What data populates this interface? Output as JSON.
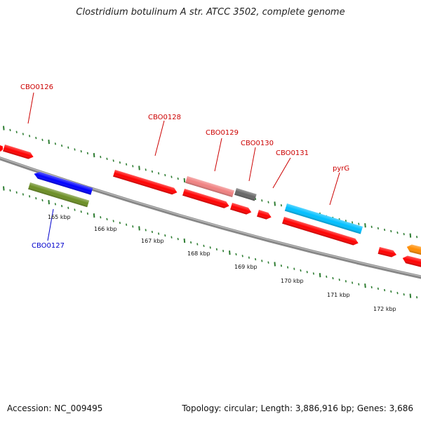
{
  "title": "Clostridium botulinum A str. ATCC 3502, complete genome",
  "footer": {
    "accession_label": "Accession:",
    "accession": "NC_009495",
    "topology_label": "Topology:",
    "topology": "circular",
    "length_label": "Length:",
    "length": "3,886,916 bp",
    "genes_label": "Genes:",
    "genes": "3,686"
  },
  "colors": {
    "backbone": "#888888",
    "gene_label_top": "#cc0000",
    "gene_label_bottom": "#0000cc",
    "tick": "#2e7d32"
  },
  "scale_labels": [
    "165 kbp",
    "166 kbp",
    "167 kbp",
    "168 kbp",
    "169 kbp",
    "170 kbp",
    "171 kbp",
    "172 kbp"
  ],
  "gene_labels": [
    "CBO0126",
    "CBO0127",
    "CBO0128",
    "CBO0129",
    "CBO0130",
    "CBO0131",
    "pyrG"
  ],
  "features": [
    {
      "name": "feature-red-edge-left",
      "color": "#ff0000"
    },
    {
      "name": "feature-red-cbo0126",
      "color": "#ff0000"
    },
    {
      "name": "feature-blue-cbo0127",
      "color": "#0000ff"
    },
    {
      "name": "feature-olive-cbo0127",
      "color": "#6b8e23"
    },
    {
      "name": "feature-red-cbo0128",
      "color": "#ff0000"
    },
    {
      "name": "feature-pink-cbo0129",
      "color": "#f08080"
    },
    {
      "name": "feature-red-cbo0129",
      "color": "#ff0000"
    },
    {
      "name": "feature-gray-cbo0130",
      "color": "#666666"
    },
    {
      "name": "feature-red-cbo0130",
      "color": "#ff0000"
    },
    {
      "name": "feature-red-cbo0131",
      "color": "#ff0000"
    },
    {
      "name": "feature-cyan-pyrg",
      "color": "#00bfff"
    },
    {
      "name": "feature-red-pyrg",
      "color": "#ff0000"
    },
    {
      "name": "feature-red-small-right",
      "color": "#ff0000"
    },
    {
      "name": "feature-orange-right",
      "color": "#ff8c00"
    },
    {
      "name": "feature-red-right-edge",
      "color": "#ff0000"
    }
  ]
}
